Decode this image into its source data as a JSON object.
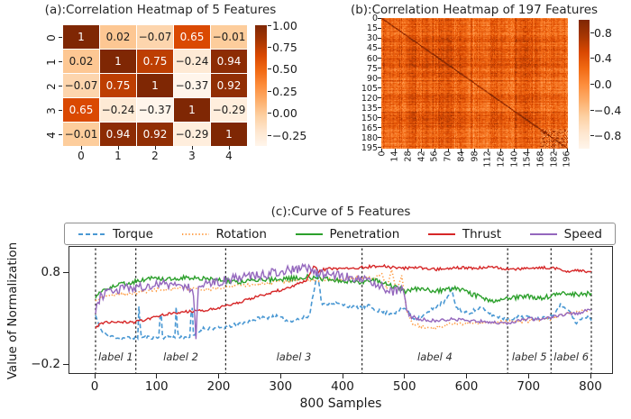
{
  "figure": {
    "background": "#ffffff",
    "text_color": "#1a1a1a"
  },
  "chart_data": [
    {
      "type": "heatmap",
      "title": "(a):Correlation Heatmap of 5 Features",
      "x_tick_labels": [
        "0",
        "1",
        "2",
        "3",
        "4"
      ],
      "y_tick_labels": [
        "0",
        "1",
        "2",
        "3",
        "4"
      ],
      "matrix": [
        [
          1,
          0.02,
          -0.07,
          0.65,
          -0.01
        ],
        [
          0.02,
          1,
          0.75,
          -0.24,
          0.94
        ],
        [
          -0.07,
          0.75,
          1,
          -0.37,
          0.92
        ],
        [
          0.65,
          -0.24,
          -0.37,
          1,
          -0.29
        ],
        [
          -0.01,
          0.94,
          0.92,
          -0.29,
          1
        ]
      ],
      "vmin": -0.37,
      "vmax": 1.0,
      "colormap": "Oranges",
      "colorbar": {
        "ticks": [
          1.0,
          0.75,
          0.5,
          0.25,
          0.0,
          -0.25
        ],
        "labels": [
          "1.00",
          "0.75",
          "0.50",
          "0.25",
          "0.00",
          "−0.25"
        ]
      }
    },
    {
      "type": "heatmap",
      "title": "(b):Correlation Heatmap of 197 Features",
      "size": 197,
      "x_tick_labels": [
        "0",
        "14",
        "28",
        "42",
        "56",
        "70",
        "84",
        "98",
        "112",
        "126",
        "140",
        "154",
        "168",
        "182",
        "196"
      ],
      "y_tick_labels": [
        "0",
        "15",
        "30",
        "45",
        "60",
        "75",
        "90",
        "105",
        "120",
        "135",
        "150",
        "165",
        "180",
        "195"
      ],
      "vmin": -1.0,
      "vmax": 1.0,
      "colormap": "Oranges",
      "colorbar": {
        "ticks": [
          0.8,
          0.4,
          0.0,
          -0.4,
          -0.8
        ],
        "labels": [
          "0.8",
          "0.4",
          "0.0",
          "−0.4",
          "−0.8"
        ]
      },
      "note": "dense 197x197 correlation matrix with dark diagonal; individual values not legible"
    },
    {
      "type": "line",
      "title": "(c):Curve of 5 Features",
      "xlabel": "800 Samples",
      "ylabel": "Value of Normalization",
      "xlim": [
        -42,
        842
      ],
      "ylim": [
        -0.31,
        1.05
      ],
      "x_ticks": [
        0,
        100,
        200,
        300,
        400,
        500,
        600,
        700,
        800
      ],
      "y_ticks": [
        0.8,
        -0.2
      ],
      "y_tick_labels": [
        "0.8",
        "−0.2"
      ],
      "vlines": [
        0,
        65,
        210,
        430,
        665,
        735,
        800
      ],
      "region_labels": [
        "label 1",
        "label 2",
        "label 3",
        "label 4",
        "label 5",
        "label 6"
      ],
      "legend_entries": [
        "Torque",
        "Rotation",
        "Penetration",
        "Thrust",
        "Speed"
      ],
      "series": [
        {
          "name": "Torque",
          "color": "#4a98d3",
          "style": "dashed",
          "x": [
            0,
            8,
            20,
            40,
            65,
            68,
            70,
            73,
            90,
            103,
            105,
            108,
            120,
            128,
            130,
            133,
            150,
            153,
            155,
            158,
            175,
            200,
            215,
            240,
            265,
            290,
            310,
            330,
            345,
            352,
            358,
            365,
            380,
            400,
            420,
            440,
            460,
            480,
            500,
            515,
            530,
            550,
            565,
            575,
            582,
            600,
            620,
            645,
            665,
            690,
            715,
            735,
            750,
            762,
            775,
            788,
            800
          ],
          "y": [
            0.34,
            0.18,
            0.12,
            0.09,
            0.1,
            0.1,
            0.45,
            0.1,
            0.1,
            0.1,
            0.5,
            0.1,
            0.11,
            0.1,
            0.42,
            0.1,
            0.1,
            0.11,
            0.55,
            0.12,
            0.2,
            0.2,
            0.22,
            0.26,
            0.31,
            0.33,
            0.28,
            0.3,
            0.33,
            0.6,
            0.83,
            0.45,
            0.48,
            0.45,
            0.42,
            0.44,
            0.38,
            0.36,
            0.42,
            0.3,
            0.34,
            0.44,
            0.5,
            0.62,
            0.42,
            0.36,
            0.42,
            0.33,
            0.3,
            0.33,
            0.3,
            0.33,
            0.45,
            0.42,
            0.25,
            0.32,
            0.3
          ]
        },
        {
          "name": "Rotation",
          "color": "#ff9d45",
          "style": "dotted",
          "x": [
            0,
            15,
            40,
            65,
            100,
            140,
            180,
            210,
            250,
            290,
            330,
            370,
            410,
            430,
            450,
            462,
            470,
            478,
            486,
            494,
            502,
            512,
            525,
            545,
            570,
            600,
            630,
            665,
            700,
            735,
            760,
            780,
            800
          ],
          "y": [
            0.5,
            0.55,
            0.57,
            0.58,
            0.62,
            0.63,
            0.62,
            0.65,
            0.67,
            0.7,
            0.72,
            0.73,
            0.74,
            0.75,
            0.74,
            0.8,
            0.62,
            0.84,
            0.6,
            0.78,
            0.4,
            0.25,
            0.22,
            0.2,
            0.24,
            0.25,
            0.26,
            0.27,
            0.28,
            0.3,
            0.36,
            0.38,
            0.4
          ]
        },
        {
          "name": "Penetration",
          "color": "#2ca02c",
          "style": "solid",
          "x": [
            0,
            10,
            30,
            60,
            90,
            120,
            160,
            200,
            230,
            260,
            300,
            340,
            380,
            420,
            450,
            480,
            500,
            520,
            550,
            580,
            610,
            640,
            665,
            690,
            720,
            735,
            760,
            780,
            800
          ],
          "y": [
            0.52,
            0.62,
            0.66,
            0.7,
            0.74,
            0.74,
            0.75,
            0.73,
            0.7,
            0.72,
            0.73,
            0.76,
            0.73,
            0.7,
            0.72,
            0.66,
            0.6,
            0.63,
            0.6,
            0.64,
            0.56,
            0.5,
            0.52,
            0.55,
            0.53,
            0.55,
            0.58,
            0.56,
            0.58
          ]
        },
        {
          "name": "Thrust",
          "color": "#d62728",
          "style": "solid",
          "x": [
            0,
            10,
            30,
            60,
            90,
            120,
            150,
            180,
            210,
            240,
            270,
            300,
            320,
            340,
            352,
            360,
            375,
            400,
            430,
            460,
            490,
            520,
            550,
            580,
            610,
            640,
            665,
            700,
            735,
            760,
            780,
            800
          ],
          "y": [
            0.2,
            0.26,
            0.27,
            0.26,
            0.31,
            0.36,
            0.38,
            0.4,
            0.44,
            0.5,
            0.56,
            0.62,
            0.66,
            0.72,
            0.88,
            0.82,
            0.85,
            0.84,
            0.86,
            0.88,
            0.85,
            0.86,
            0.84,
            0.86,
            0.85,
            0.87,
            0.84,
            0.85,
            0.86,
            0.82,
            0.83,
            0.81
          ]
        },
        {
          "name": "Speed",
          "color": "#9467bd",
          "style": "solid",
          "x": [
            0,
            8,
            25,
            45,
            65,
            90,
            115,
            140,
            155,
            158,
            162,
            166,
            185,
            210,
            240,
            270,
            300,
            320,
            340,
            360,
            380,
            400,
            420,
            440,
            460,
            480,
            495,
            505,
            520,
            545,
            575,
            605,
            635,
            665,
            695,
            720,
            735,
            755,
            775,
            800
          ],
          "y": [
            0.4,
            0.55,
            0.6,
            0.63,
            0.65,
            0.66,
            0.68,
            0.66,
            0.64,
            0.6,
            0.12,
            0.66,
            0.68,
            0.72,
            0.76,
            0.78,
            0.82,
            0.84,
            0.86,
            0.8,
            0.78,
            0.76,
            0.74,
            0.72,
            0.65,
            0.6,
            0.62,
            0.35,
            0.3,
            0.28,
            0.3,
            0.28,
            0.27,
            0.25,
            0.3,
            0.3,
            0.32,
            0.35,
            0.36,
            0.4
          ]
        }
      ]
    }
  ]
}
